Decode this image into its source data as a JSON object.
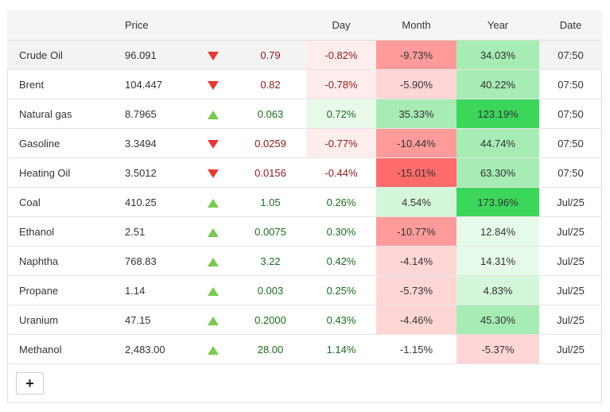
{
  "headers": {
    "price": "Price",
    "day": "Day",
    "month": "Month",
    "year": "Year",
    "date": "Date"
  },
  "rows": [
    {
      "name": "Crude Oil",
      "price": "96.091",
      "direction": "down",
      "change": "0.79",
      "day": "-0.82%",
      "month": "-9.73%",
      "year": "34.03%",
      "date": "07:50"
    },
    {
      "name": "Brent",
      "price": "104.447",
      "direction": "down",
      "change": "0.82",
      "day": "-0.78%",
      "month": "-5.90%",
      "year": "40.22%",
      "date": "07:50"
    },
    {
      "name": "Natural gas",
      "price": "8.7965",
      "direction": "up",
      "change": "0.063",
      "day": "0.72%",
      "month": "35.33%",
      "year": "123.19%",
      "date": "07:50"
    },
    {
      "name": "Gasoline",
      "price": "3.3494",
      "direction": "down",
      "change": "0.0259",
      "day": "-0.77%",
      "month": "-10.44%",
      "year": "44.74%",
      "date": "07:50"
    },
    {
      "name": "Heating Oil",
      "price": "3.5012",
      "direction": "down",
      "change": "0.0156",
      "day": "-0.44%",
      "month": "-15.01%",
      "year": "63.30%",
      "date": "07:50"
    },
    {
      "name": "Coal",
      "price": "410.25",
      "direction": "up",
      "change": "1.05",
      "day": "0.26%",
      "month": "4.54%",
      "year": "173.96%",
      "date": "Jul/25"
    },
    {
      "name": "Ethanol",
      "price": "2.51",
      "direction": "up",
      "change": "0.0075",
      "day": "0.30%",
      "month": "-10.77%",
      "year": "12.84%",
      "date": "Jul/25"
    },
    {
      "name": "Naphtha",
      "price": "768.83",
      "direction": "up",
      "change": "3.22",
      "day": "0.42%",
      "month": "-4.14%",
      "year": "14.31%",
      "date": "Jul/25"
    },
    {
      "name": "Propane",
      "price": "1.14",
      "direction": "up",
      "change": "0.003",
      "day": "0.25%",
      "month": "-5.73%",
      "year": "4.83%",
      "date": "Jul/25"
    },
    {
      "name": "Uranium",
      "price": "47.15",
      "direction": "up",
      "change": "0.2000",
      "day": "0.43%",
      "month": "-4.46%",
      "year": "45.30%",
      "date": "Jul/25"
    },
    {
      "name": "Methanol",
      "price": "2,483.00",
      "direction": "up",
      "change": "28.00",
      "day": "1.14%",
      "month": "-1.15%",
      "year": "-5.37%",
      "date": "Jul/25"
    }
  ],
  "add_button_label": "+",
  "icons": {
    "up": "triangle-up-icon",
    "down": "triangle-down-icon"
  },
  "colors": {
    "arrow_up": "#7dc855",
    "arrow_down": "#e53935",
    "text_negative": "#8b1a1a",
    "text_positive": "#1f6b1f"
  }
}
